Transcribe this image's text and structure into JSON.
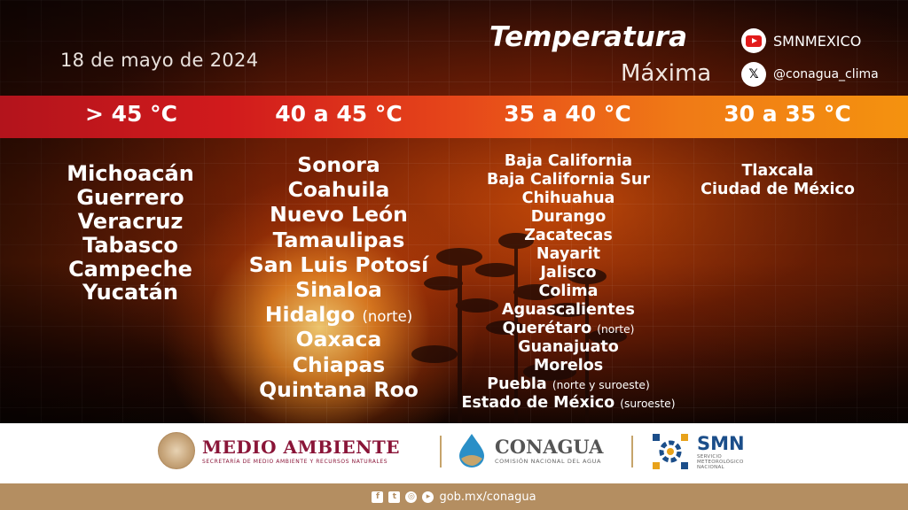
{
  "header": {
    "date": "18 de mayo de 2024",
    "title": "Temperatura",
    "subtitle": "Máxima"
  },
  "social": [
    {
      "icon": "youtube-icon",
      "handle": "SMNMEXICO"
    },
    {
      "icon": "x-icon",
      "glyph": "𝕏",
      "handle": "@conagua_clima"
    }
  ],
  "ranges": [
    {
      "label": "> 45 °C",
      "states": [
        {
          "name": "Michoacán",
          "note": ""
        },
        {
          "name": "Guerrero",
          "note": ""
        },
        {
          "name": "Veracruz",
          "note": ""
        },
        {
          "name": "Tabasco",
          "note": ""
        },
        {
          "name": "Campeche",
          "note": ""
        },
        {
          "name": "Yucatán",
          "note": ""
        }
      ]
    },
    {
      "label": "40 a 45 °C",
      "states": [
        {
          "name": "Sonora",
          "note": ""
        },
        {
          "name": "Coahuila",
          "note": ""
        },
        {
          "name": "Nuevo León",
          "note": ""
        },
        {
          "name": "Tamaulipas",
          "note": ""
        },
        {
          "name": "San Luis Potosí",
          "note": ""
        },
        {
          "name": "Sinaloa",
          "note": ""
        },
        {
          "name": "Hidalgo",
          "note": "(norte)"
        },
        {
          "name": "Oaxaca",
          "note": ""
        },
        {
          "name": "Chiapas",
          "note": ""
        },
        {
          "name": "Quintana Roo",
          "note": ""
        }
      ]
    },
    {
      "label": "35 a 40 °C",
      "states": [
        {
          "name": "Baja California",
          "note": ""
        },
        {
          "name": "Baja California Sur",
          "note": ""
        },
        {
          "name": "Chihuahua",
          "note": ""
        },
        {
          "name": "Durango",
          "note": ""
        },
        {
          "name": "Zacatecas",
          "note": ""
        },
        {
          "name": "Nayarit",
          "note": ""
        },
        {
          "name": "Jalisco",
          "note": ""
        },
        {
          "name": "Colima",
          "note": ""
        },
        {
          "name": "Aguascalientes",
          "note": ""
        },
        {
          "name": "Querétaro",
          "note": "(norte)"
        },
        {
          "name": "Guanajuato",
          "note": ""
        },
        {
          "name": "Morelos",
          "note": ""
        },
        {
          "name": "Puebla",
          "note": "(norte y suroeste)"
        },
        {
          "name": "Estado de México",
          "note": "(suroeste)"
        }
      ]
    },
    {
      "label": "30 a 35 °C",
      "states": [
        {
          "name": "Tlaxcala",
          "note": ""
        },
        {
          "name": "Ciudad de México",
          "note": ""
        }
      ]
    }
  ],
  "footer": {
    "medio_ambiente": {
      "name": "MEDIO AMBIENTE",
      "sub": "SECRETARÍA DE MEDIO AMBIENTE Y RECURSOS NATURALES"
    },
    "conagua": {
      "name": "CONAGUA",
      "sub": "COMISIÓN NACIONAL DEL AGUA"
    },
    "smn": {
      "name": "SMN",
      "sub": [
        "SERVICIO",
        "METEOROLÓGICO",
        "NACIONAL"
      ]
    },
    "social_icons": [
      "facebook-icon",
      "twitter-icon",
      "instagram-icon",
      "youtube-icon"
    ],
    "url": "gob.mx/conagua"
  },
  "colors": {
    "band_start": "#b3141c",
    "band_end": "#f4920f",
    "footer_bar": "#b48e61",
    "brand_maroon": "#8a1538",
    "smn_blue": "#1b4e8a"
  }
}
